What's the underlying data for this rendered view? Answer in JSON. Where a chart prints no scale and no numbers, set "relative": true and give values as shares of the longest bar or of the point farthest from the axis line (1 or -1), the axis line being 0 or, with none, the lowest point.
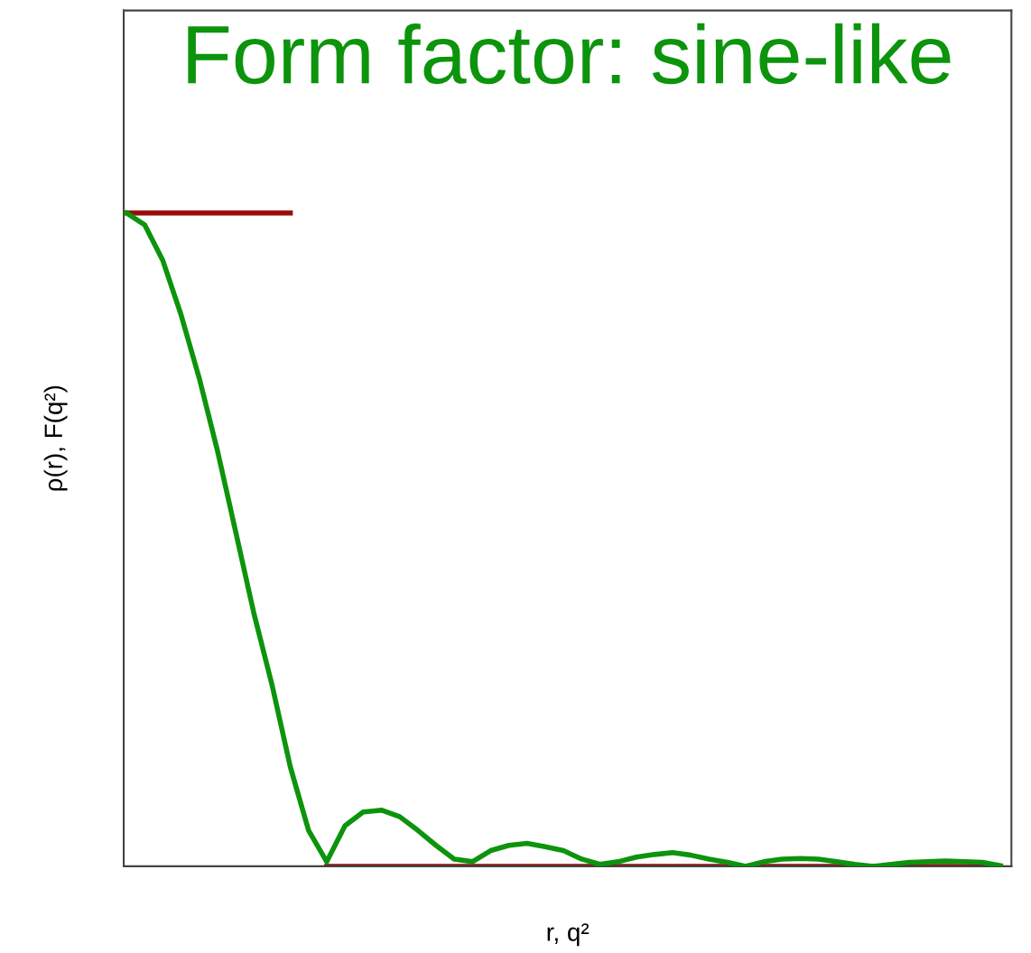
{
  "chart_data": {
    "type": "line",
    "title": "Form factor: sine-like",
    "xlabel": "r, q²",
    "ylabel": "ρ(r), F(q²)",
    "relative": true,
    "marker": "none",
    "line_style": "solid",
    "categories": [
      null,
      null,
      null,
      null,
      null,
      null,
      null,
      null,
      null,
      null,
      null,
      null,
      null,
      null,
      null,
      null,
      null,
      null,
      null,
      null,
      null,
      null,
      null,
      null,
      null,
      null,
      null,
      null,
      null,
      null,
      null,
      null,
      null,
      null,
      null,
      null,
      null,
      null,
      null,
      null,
      null,
      null,
      null,
      null,
      null,
      null,
      null,
      null,
      null
    ],
    "series": [
      {
        "color": "#9a0a0a",
        "values": [
          1,
          1,
          1,
          1,
          1,
          1,
          1,
          1,
          1,
          1,
          null,
          0,
          0,
          0,
          0,
          0,
          0,
          0,
          0,
          0,
          0,
          0,
          0,
          0,
          0,
          0,
          0,
          0,
          0,
          0,
          0,
          0,
          0,
          0,
          0,
          0,
          0,
          0,
          0,
          0,
          0,
          0,
          0,
          0,
          0,
          0,
          0,
          0,
          0
        ]
      },
      {
        "color": "#0c940c",
        "values": [
          1.0,
          0.982,
          0.927,
          0.844,
          0.747,
          0.636,
          0.512,
          0.387,
          0.277,
          0.152,
          0.055,
          0.007,
          0.062,
          0.083,
          0.086,
          0.076,
          0.055,
          0.032,
          0.011,
          0.007,
          0.024,
          0.032,
          0.035,
          0.03,
          0.024,
          0.011,
          0.003,
          0.007,
          0.014,
          0.018,
          0.021,
          0.017,
          0.011,
          0.006,
          0,
          0.007,
          0.011,
          0.012,
          0.011,
          0.007,
          0.003,
          0,
          0.003,
          0.006,
          0.007,
          0.008,
          0.007,
          0.006,
          0.001
        ]
      }
    ]
  }
}
